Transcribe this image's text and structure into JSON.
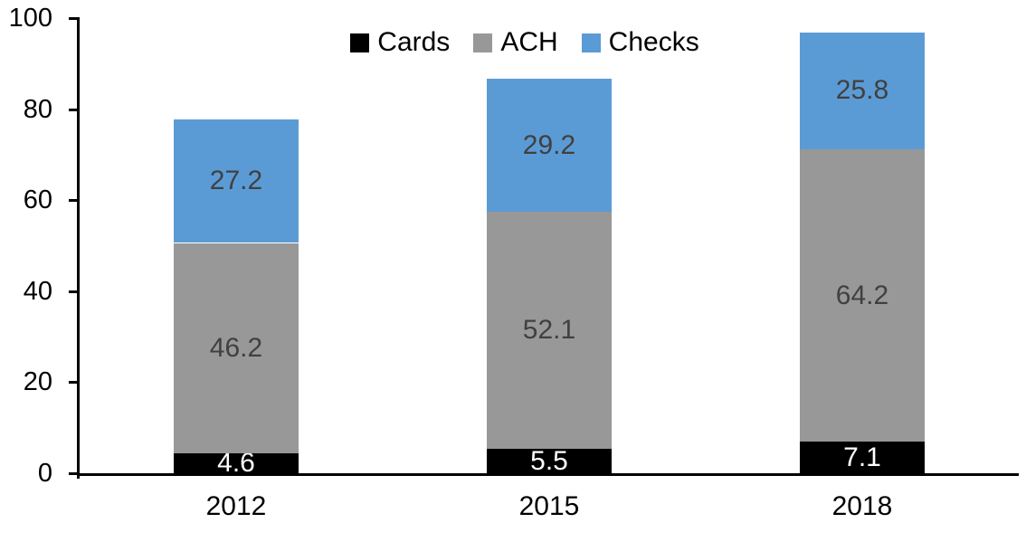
{
  "chart_data": {
    "type": "bar",
    "stacked": true,
    "categories": [
      "2012",
      "2015",
      "2018"
    ],
    "series": [
      {
        "name": "Cards",
        "color": "#000000",
        "label_color": "#FFFFFF",
        "values": [
          4.6,
          5.5,
          7.1
        ]
      },
      {
        "name": "ACH",
        "color": "#989898",
        "label_color": "#404040",
        "values": [
          46.2,
          52.1,
          64.2
        ]
      },
      {
        "name": "Checks",
        "color": "#5B9BD5",
        "label_color": "#404040",
        "values": [
          27.2,
          29.2,
          25.8
        ]
      }
    ],
    "totals": [
      78.0,
      86.8,
      97.1
    ],
    "ylim": [
      0,
      100
    ],
    "yticks": [
      0,
      20,
      40,
      60,
      80,
      100
    ],
    "legend_position": "top",
    "grid": false,
    "axis_color": "#000000",
    "background_color": "#FFFFFF"
  }
}
